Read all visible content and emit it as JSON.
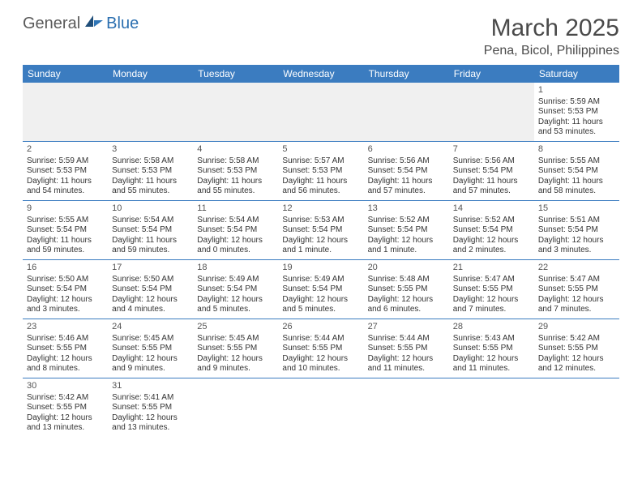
{
  "logo": {
    "textGeneral": "General",
    "textBlue": "Blue"
  },
  "title": "March 2025",
  "location": "Pena, Bicol, Philippines",
  "colors": {
    "headerBar": "#3b7cc0",
    "rowBorder": "#3b7cc0",
    "firstWeekBg": "#f0f0f0",
    "text": "#333333",
    "titleText": "#4a4a4a"
  },
  "daysOfWeek": [
    "Sunday",
    "Monday",
    "Tuesday",
    "Wednesday",
    "Thursday",
    "Friday",
    "Saturday"
  ],
  "weeks": [
    [
      null,
      null,
      null,
      null,
      null,
      null,
      {
        "num": "1",
        "sunrise": "Sunrise: 5:59 AM",
        "sunset": "Sunset: 5:53 PM",
        "daylight1": "Daylight: 11 hours",
        "daylight2": "and 53 minutes."
      }
    ],
    [
      {
        "num": "2",
        "sunrise": "Sunrise: 5:59 AM",
        "sunset": "Sunset: 5:53 PM",
        "daylight1": "Daylight: 11 hours",
        "daylight2": "and 54 minutes."
      },
      {
        "num": "3",
        "sunrise": "Sunrise: 5:58 AM",
        "sunset": "Sunset: 5:53 PM",
        "daylight1": "Daylight: 11 hours",
        "daylight2": "and 55 minutes."
      },
      {
        "num": "4",
        "sunrise": "Sunrise: 5:58 AM",
        "sunset": "Sunset: 5:53 PM",
        "daylight1": "Daylight: 11 hours",
        "daylight2": "and 55 minutes."
      },
      {
        "num": "5",
        "sunrise": "Sunrise: 5:57 AM",
        "sunset": "Sunset: 5:53 PM",
        "daylight1": "Daylight: 11 hours",
        "daylight2": "and 56 minutes."
      },
      {
        "num": "6",
        "sunrise": "Sunrise: 5:56 AM",
        "sunset": "Sunset: 5:54 PM",
        "daylight1": "Daylight: 11 hours",
        "daylight2": "and 57 minutes."
      },
      {
        "num": "7",
        "sunrise": "Sunrise: 5:56 AM",
        "sunset": "Sunset: 5:54 PM",
        "daylight1": "Daylight: 11 hours",
        "daylight2": "and 57 minutes."
      },
      {
        "num": "8",
        "sunrise": "Sunrise: 5:55 AM",
        "sunset": "Sunset: 5:54 PM",
        "daylight1": "Daylight: 11 hours",
        "daylight2": "and 58 minutes."
      }
    ],
    [
      {
        "num": "9",
        "sunrise": "Sunrise: 5:55 AM",
        "sunset": "Sunset: 5:54 PM",
        "daylight1": "Daylight: 11 hours",
        "daylight2": "and 59 minutes."
      },
      {
        "num": "10",
        "sunrise": "Sunrise: 5:54 AM",
        "sunset": "Sunset: 5:54 PM",
        "daylight1": "Daylight: 11 hours",
        "daylight2": "and 59 minutes."
      },
      {
        "num": "11",
        "sunrise": "Sunrise: 5:54 AM",
        "sunset": "Sunset: 5:54 PM",
        "daylight1": "Daylight: 12 hours",
        "daylight2": "and 0 minutes."
      },
      {
        "num": "12",
        "sunrise": "Sunrise: 5:53 AM",
        "sunset": "Sunset: 5:54 PM",
        "daylight1": "Daylight: 12 hours",
        "daylight2": "and 1 minute."
      },
      {
        "num": "13",
        "sunrise": "Sunrise: 5:52 AM",
        "sunset": "Sunset: 5:54 PM",
        "daylight1": "Daylight: 12 hours",
        "daylight2": "and 1 minute."
      },
      {
        "num": "14",
        "sunrise": "Sunrise: 5:52 AM",
        "sunset": "Sunset: 5:54 PM",
        "daylight1": "Daylight: 12 hours",
        "daylight2": "and 2 minutes."
      },
      {
        "num": "15",
        "sunrise": "Sunrise: 5:51 AM",
        "sunset": "Sunset: 5:54 PM",
        "daylight1": "Daylight: 12 hours",
        "daylight2": "and 3 minutes."
      }
    ],
    [
      {
        "num": "16",
        "sunrise": "Sunrise: 5:50 AM",
        "sunset": "Sunset: 5:54 PM",
        "daylight1": "Daylight: 12 hours",
        "daylight2": "and 3 minutes."
      },
      {
        "num": "17",
        "sunrise": "Sunrise: 5:50 AM",
        "sunset": "Sunset: 5:54 PM",
        "daylight1": "Daylight: 12 hours",
        "daylight2": "and 4 minutes."
      },
      {
        "num": "18",
        "sunrise": "Sunrise: 5:49 AM",
        "sunset": "Sunset: 5:54 PM",
        "daylight1": "Daylight: 12 hours",
        "daylight2": "and 5 minutes."
      },
      {
        "num": "19",
        "sunrise": "Sunrise: 5:49 AM",
        "sunset": "Sunset: 5:54 PM",
        "daylight1": "Daylight: 12 hours",
        "daylight2": "and 5 minutes."
      },
      {
        "num": "20",
        "sunrise": "Sunrise: 5:48 AM",
        "sunset": "Sunset: 5:55 PM",
        "daylight1": "Daylight: 12 hours",
        "daylight2": "and 6 minutes."
      },
      {
        "num": "21",
        "sunrise": "Sunrise: 5:47 AM",
        "sunset": "Sunset: 5:55 PM",
        "daylight1": "Daylight: 12 hours",
        "daylight2": "and 7 minutes."
      },
      {
        "num": "22",
        "sunrise": "Sunrise: 5:47 AM",
        "sunset": "Sunset: 5:55 PM",
        "daylight1": "Daylight: 12 hours",
        "daylight2": "and 7 minutes."
      }
    ],
    [
      {
        "num": "23",
        "sunrise": "Sunrise: 5:46 AM",
        "sunset": "Sunset: 5:55 PM",
        "daylight1": "Daylight: 12 hours",
        "daylight2": "and 8 minutes."
      },
      {
        "num": "24",
        "sunrise": "Sunrise: 5:45 AM",
        "sunset": "Sunset: 5:55 PM",
        "daylight1": "Daylight: 12 hours",
        "daylight2": "and 9 minutes."
      },
      {
        "num": "25",
        "sunrise": "Sunrise: 5:45 AM",
        "sunset": "Sunset: 5:55 PM",
        "daylight1": "Daylight: 12 hours",
        "daylight2": "and 9 minutes."
      },
      {
        "num": "26",
        "sunrise": "Sunrise: 5:44 AM",
        "sunset": "Sunset: 5:55 PM",
        "daylight1": "Daylight: 12 hours",
        "daylight2": "and 10 minutes."
      },
      {
        "num": "27",
        "sunrise": "Sunrise: 5:44 AM",
        "sunset": "Sunset: 5:55 PM",
        "daylight1": "Daylight: 12 hours",
        "daylight2": "and 11 minutes."
      },
      {
        "num": "28",
        "sunrise": "Sunrise: 5:43 AM",
        "sunset": "Sunset: 5:55 PM",
        "daylight1": "Daylight: 12 hours",
        "daylight2": "and 11 minutes."
      },
      {
        "num": "29",
        "sunrise": "Sunrise: 5:42 AM",
        "sunset": "Sunset: 5:55 PM",
        "daylight1": "Daylight: 12 hours",
        "daylight2": "and 12 minutes."
      }
    ],
    [
      {
        "num": "30",
        "sunrise": "Sunrise: 5:42 AM",
        "sunset": "Sunset: 5:55 PM",
        "daylight1": "Daylight: 12 hours",
        "daylight2": "and 13 minutes."
      },
      {
        "num": "31",
        "sunrise": "Sunrise: 5:41 AM",
        "sunset": "Sunset: 5:55 PM",
        "daylight1": "Daylight: 12 hours",
        "daylight2": "and 13 minutes."
      },
      null,
      null,
      null,
      null,
      null
    ]
  ]
}
